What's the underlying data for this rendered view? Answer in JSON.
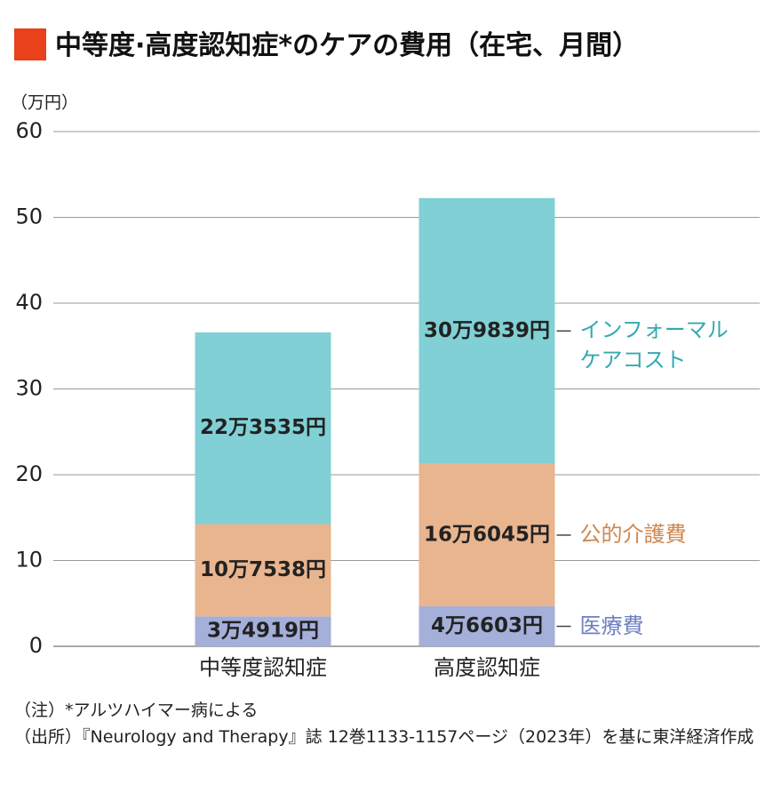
{
  "chart_data": {
    "type": "bar",
    "stacked": true,
    "title": "中等度·高度認知症*のケアの費用（在宅、月間）",
    "y_unit_label": "（万円）",
    "categories": [
      "中等度認知症",
      "高度認知症"
    ],
    "series": [
      {
        "name": "医療費",
        "color": "#a4afda",
        "label_color": "#6f7fc2",
        "values": [
          3.4919,
          4.6603
        ],
        "value_labels": [
          "3万4919円",
          "4万6603円"
        ]
      },
      {
        "name": "公的介護費",
        "color": "#e9b58f",
        "label_color": "#cf8750",
        "values": [
          10.7538,
          16.6045
        ],
        "value_labels": [
          "10万7538円",
          "16万6045円"
        ]
      },
      {
        "name": "インフォーマルケアコスト",
        "color": "#80d0d5",
        "label_color": "#34a9b3",
        "values": [
          22.3535,
          30.9839
        ],
        "value_labels": [
          "22万3535円",
          "30万9839円"
        ]
      }
    ],
    "ylim": [
      0,
      60
    ],
    "yticks": [
      0,
      10,
      20,
      30,
      40,
      50,
      60
    ],
    "grid": true
  },
  "notes": [
    "（注）*アルツハイマー病による",
    "（出所）『Neurology and Therapy』誌 12巻1133-1157ページ（2023年）を基に東洋経済作成"
  ]
}
